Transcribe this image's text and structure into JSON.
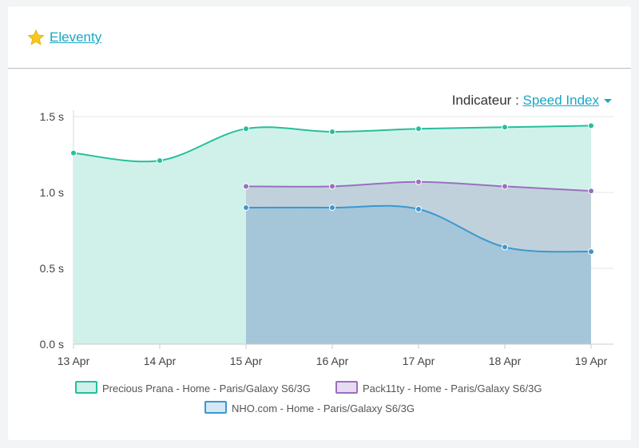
{
  "header": {
    "title": "Eleventy",
    "icon": "star-icon"
  },
  "indicator": {
    "label": "Indicateur :",
    "selected": "Speed Index"
  },
  "chart_data": {
    "type": "area",
    "categories": [
      "13 Apr",
      "14 Apr",
      "15 Apr",
      "16 Apr",
      "17 Apr",
      "18 Apr",
      "19 Apr"
    ],
    "y_ticks": [
      "0.0 s",
      "0.5 s",
      "1.0 s",
      "1.5 s"
    ],
    "ylim": [
      0,
      1.5
    ],
    "grid": true,
    "legend_position": "bottom",
    "series": [
      {
        "name": "Precious Prana -  Home - Paris/Galaxy S6/3G",
        "color": "#26bf9c",
        "fill": "#d0f1ea",
        "values": [
          1.26,
          1.21,
          1.42,
          1.4,
          1.42,
          1.43,
          1.44
        ]
      },
      {
        "name": "Pack11ty - Home - Paris/Galaxy S6/3G",
        "color": "#9b6fc0",
        "fill": "#c1d1dc",
        "values": [
          null,
          null,
          1.04,
          1.04,
          1.07,
          1.04,
          1.01
        ]
      },
      {
        "name": "NHO.com - Home - Paris/Galaxy S6/3G",
        "color": "#3a98d1",
        "fill": "#a5c5d8",
        "values": [
          null,
          null,
          0.9,
          0.9,
          0.89,
          0.64,
          0.61
        ]
      }
    ]
  }
}
